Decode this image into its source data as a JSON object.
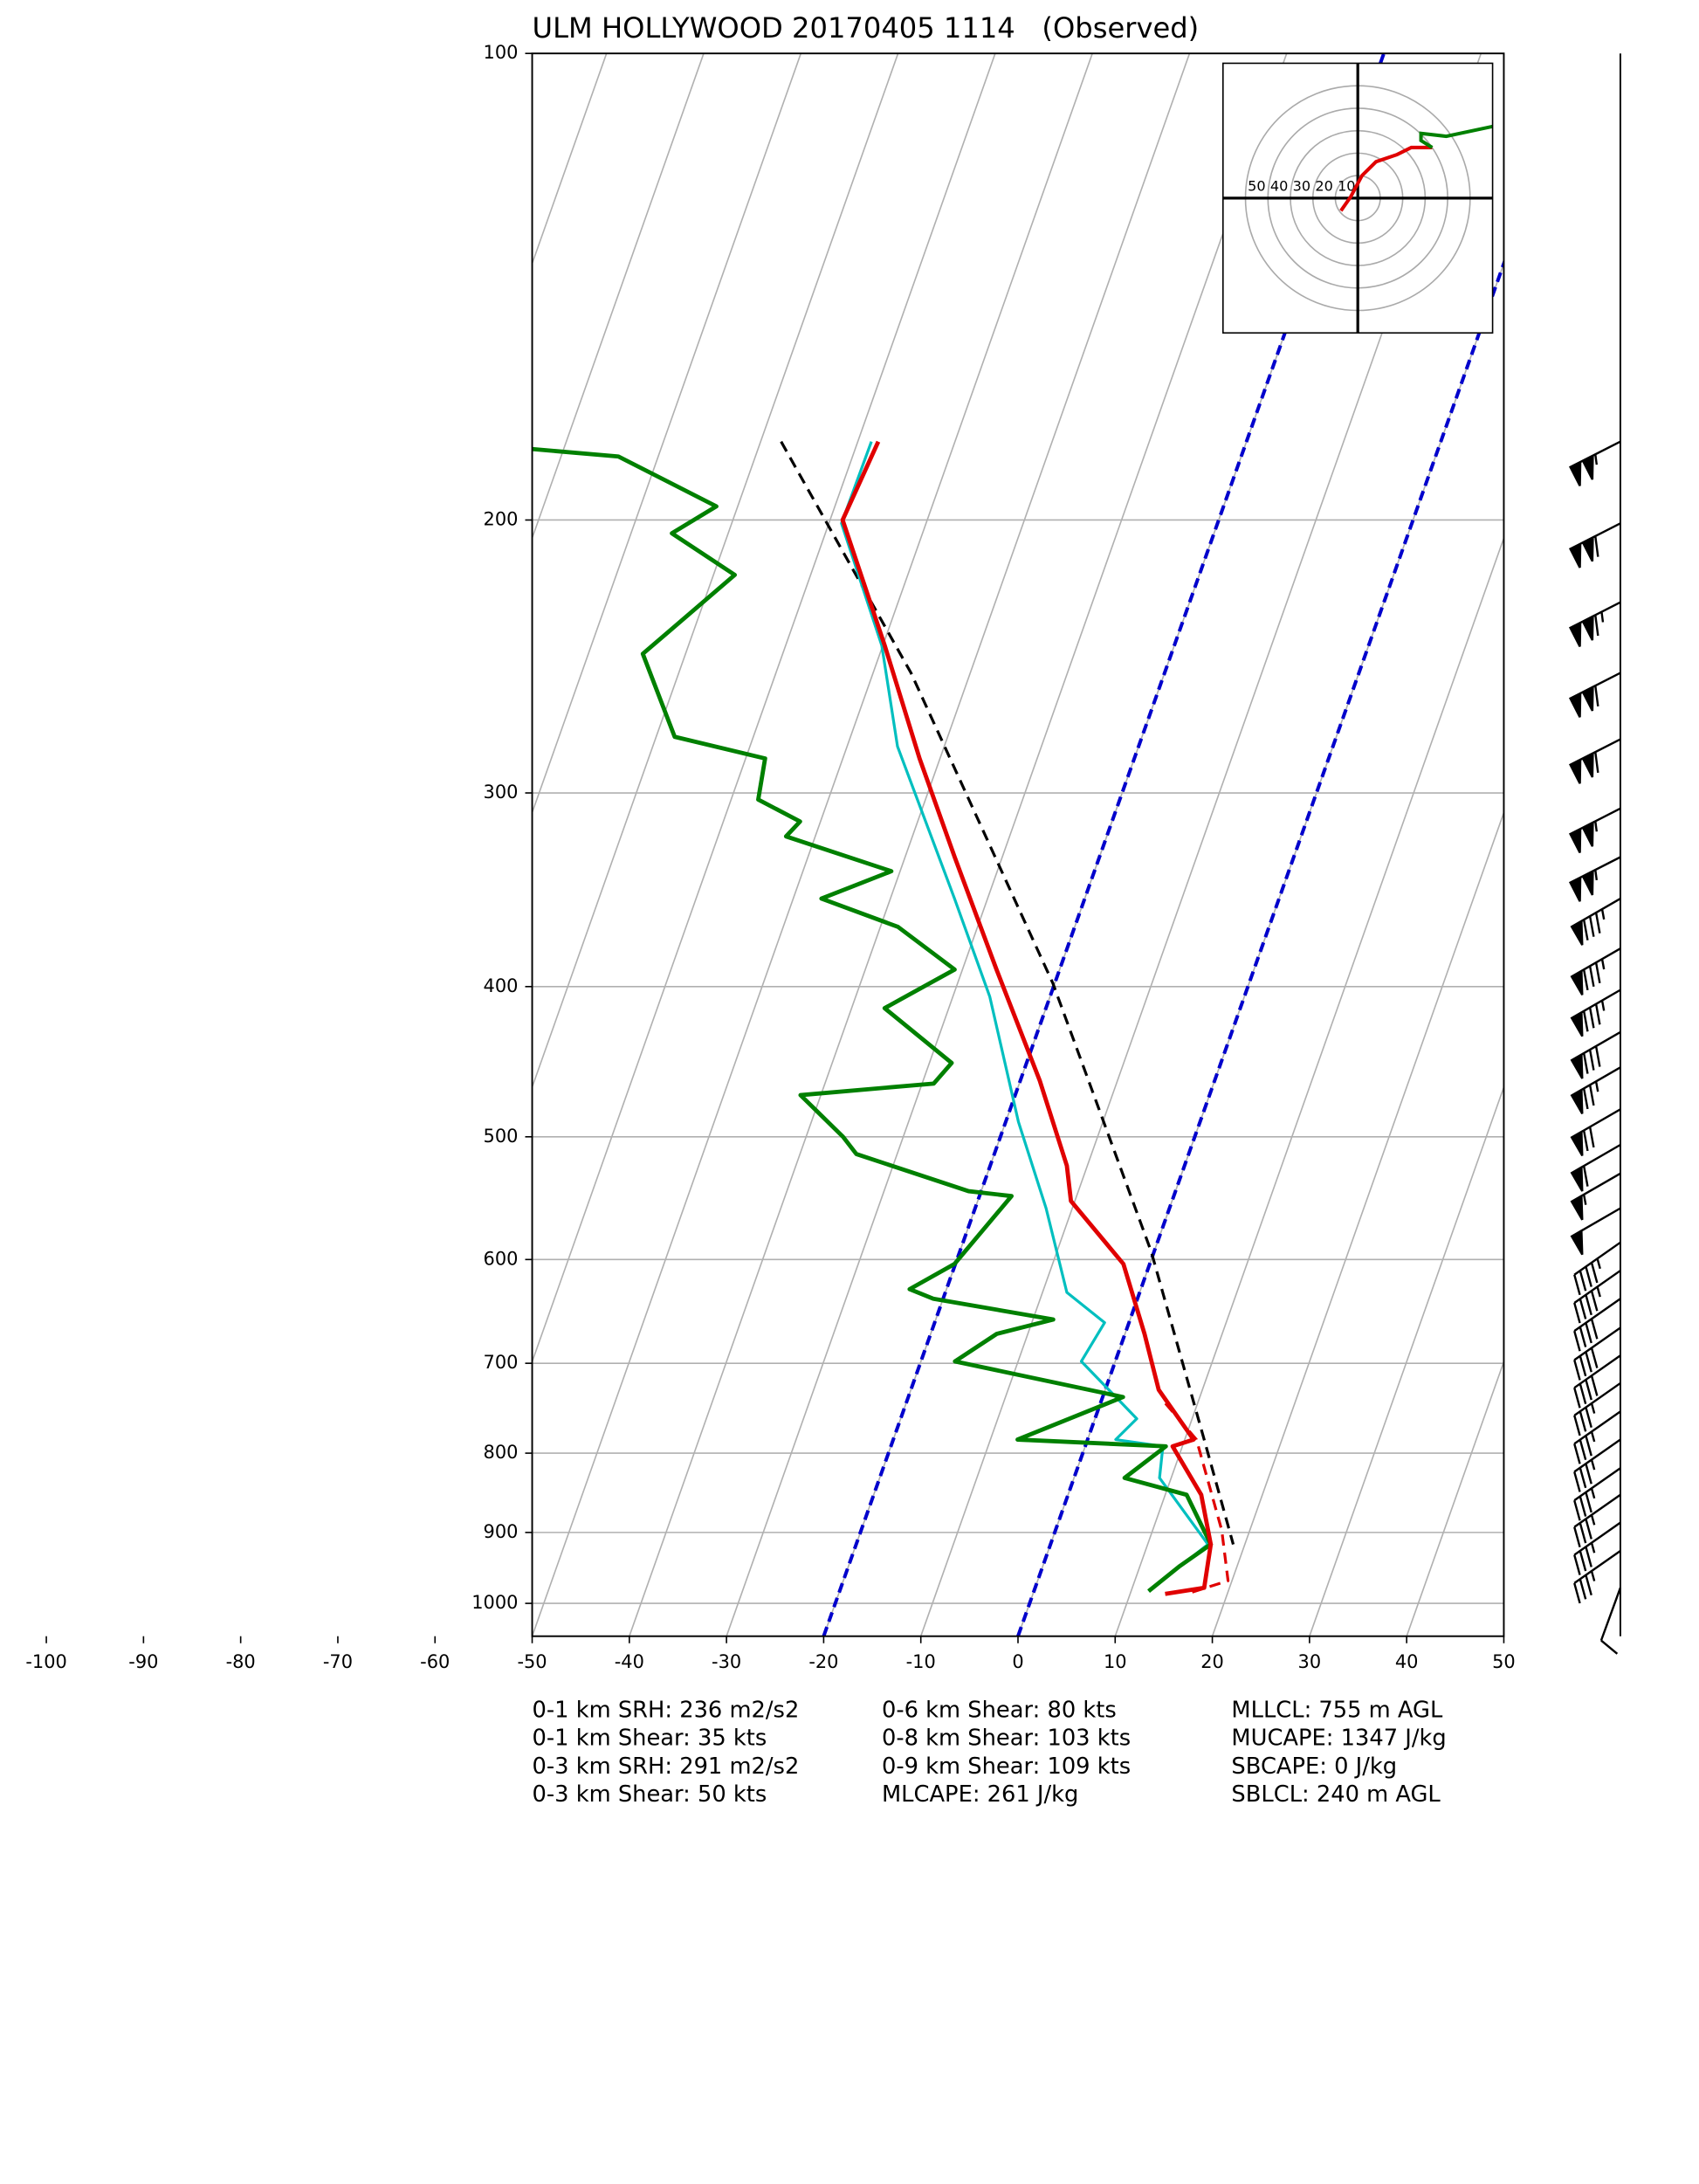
{
  "chart_data": {
    "type": "skewt",
    "title": "ULM HOLLYWOOD 20170405 1114   (Observed)",
    "log_scale": true,
    "grid": true,
    "ylim": [
      1050,
      100
    ],
    "yticks": [
      100,
      200,
      300,
      400,
      500,
      600,
      700,
      800,
      900,
      1000
    ],
    "xlim": [
      -50,
      50
    ],
    "xticks": [
      -100,
      -90,
      -80,
      -70,
      -60,
      -50,
      -40,
      -30,
      -20,
      -10,
      0,
      10,
      20,
      30,
      40,
      50
    ],
    "isotherms": {
      "color": "#0000cc",
      "values": [
        -20,
        0
      ]
    },
    "profiles": [
      {
        "color": "#000000",
        "dashed": true,
        "width": 2,
        "pressure": [
          178,
          251,
          398,
          593,
          784,
          916
        ],
        "values": [
          -67.9,
          -46.1,
          -20.2,
          -0.3,
          12,
          18.8
        ]
      },
      {
        "color": "#00bfbf",
        "dashed": false,
        "width": 2,
        "pressure": [
          178,
          201,
          241,
          280,
          351,
          406,
          489,
          556,
          630,
          659,
          698,
          760,
          784,
          792,
          830,
          916,
          982
        ],
        "values": [
          -58.6,
          -58.7,
          -50.1,
          -44.8,
          -33.4,
          -26.2,
          -18.7,
          -12.7,
          -7.5,
          -2.5,
          -3.5,
          4.3,
          2.9,
          8,
          8.8,
          16.2,
          11.8
        ]
      },
      {
        "color": "#e00000",
        "dashed": true,
        "width": 2,
        "pressure": [
          743,
          784,
          897,
          967,
          986
        ],
        "values": [
          6.7,
          11.2,
          17.1,
          19.6,
          15.8
        ]
      },
      {
        "color": "#008000",
        "dashed": false,
        "width": 3,
        "pressure": [
          180,
          182,
          196,
          204,
          217,
          244,
          276,
          285,
          303,
          313,
          320,
          337,
          351,
          366,
          390,
          413,
          448,
          462,
          470,
          500,
          513,
          542,
          546,
          604,
          627,
          636,
          656,
          670,
          698,
          736,
          784,
          792,
          830,
          851,
          916,
          946,
          982
        ],
        "values": [
          -93.2,
          -84.1,
          -72.2,
          -75.8,
          -67.8,
          -74.4,
          -68.1,
          -58,
          -57.2,
          -52.1,
          -53,
          -40.9,
          -47.1,
          -38.2,
          -30.8,
          -36.6,
          -27.7,
          -28.8,
          -42.1,
          -36.2,
          -34.2,
          -21.3,
          -16.7,
          -20.1,
          -23.8,
          -21,
          -7.9,
          -13.2,
          -16.5,
          2.1,
          -7.2,
          8.3,
          5.2,
          12.2,
          16.5,
          14.1,
          11.8
        ]
      },
      {
        "color": "#e00000",
        "dashed": false,
        "width": 3,
        "pressure": [
          178,
          200,
          241,
          285,
          330,
          390,
          460,
          522,
          550,
          604,
          670,
          728,
          784,
          792,
          851,
          916,
          977,
          986
        ],
        "values": [
          -57.9,
          -58.7,
          -49.8,
          -42.1,
          -34.9,
          -26.5,
          -18,
          -12.1,
          -10.4,
          -2.7,
          2,
          5.5,
          10.9,
          9,
          13.7,
          16.5,
          17.4,
          13.6
        ]
      }
    ],
    "barbs": {
      "pressure": [
        178,
        201,
        226,
        251,
        277,
        307,
        330,
        351,
        378,
        402,
        428,
        451,
        480,
        506,
        528,
        556,
        585,
        610,
        636,
        664,
        692,
        721,
        752,
        784,
        818,
        851,
        887,
        925,
        977
      ],
      "speed": [
        105,
        110,
        115,
        110,
        110,
        105,
        105,
        85,
        85,
        85,
        80,
        75,
        70,
        60,
        55,
        50,
        45,
        45,
        40,
        40,
        40,
        35,
        35,
        35,
        35,
        35,
        35,
        35,
        10
      ],
      "direction": [
        243,
        243,
        243,
        243,
        243,
        243,
        243,
        240,
        240,
        240,
        240,
        240,
        240,
        240,
        240,
        240,
        235,
        235,
        235,
        235,
        235,
        235,
        235,
        235,
        235,
        235,
        235,
        235,
        200
      ]
    },
    "hodograph": {
      "rings": [
        10,
        20,
        30,
        40,
        50
      ],
      "ring_labels": [
        50,
        40,
        30,
        20,
        10
      ],
      "segments": [
        {
          "color": "#e00000",
          "u": [
            -7.5,
            -3.1,
            1.9,
            8.1,
            17.5,
            23.8,
            33.1
          ],
          "v": [
            -5.6,
            0.6,
            10,
            16.2,
            19.4,
            22.5,
            22.5
          ]
        },
        {
          "color": "#008000",
          "u": [
            33.1,
            28.1,
            28.1,
            39.4,
            60
          ],
          "v": [
            22.5,
            25.6,
            28.8,
            27.5,
            31.9
          ]
        }
      ]
    },
    "stats": [
      "0-1 km SRH: 236 m2/s2",
      "0-1 km Shear: 35 kts",
      "0-3 km SRH: 291 m2/s2",
      "0-3 km Shear: 50 kts",
      "0-6 km Shear: 80 kts",
      "0-8 km Shear: 103 kts",
      "0-9 km Shear: 109 kts",
      "MLCAPE: 261 J/kg",
      "MLLCL: 755 m AGL",
      "MUCAPE: 1347 J/kg",
      "SBCAPE: 0 J/kg",
      "SBLCL: 240 m AGL"
    ]
  }
}
